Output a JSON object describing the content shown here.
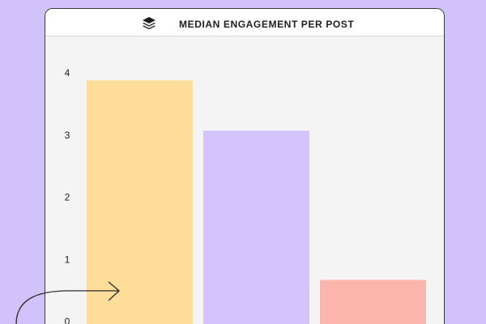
{
  "header": {
    "title": "MEDIAN ENGAGEMENT PER POST",
    "logo_icon": "stacked-layers-icon"
  },
  "chart_data": {
    "type": "bar",
    "title": "MEDIAN ENGAGEMENT PER POST",
    "xlabel": "",
    "ylabel": "",
    "ylim": [
      0,
      4
    ],
    "yticks": [
      "0",
      "1",
      "2",
      "3",
      "4"
    ],
    "categories": [
      "",
      "",
      ""
    ],
    "values": [
      3.88,
      3.07,
      0.67
    ],
    "colors": [
      "#fddd99",
      "#d4c3fc",
      "#fdb6ad"
    ],
    "grid": false,
    "legend": "none"
  },
  "colors": {
    "background": "#d2c2fb",
    "card": "#f4f4f4",
    "header": "#ffffff",
    "text": "#1d1d1d"
  }
}
